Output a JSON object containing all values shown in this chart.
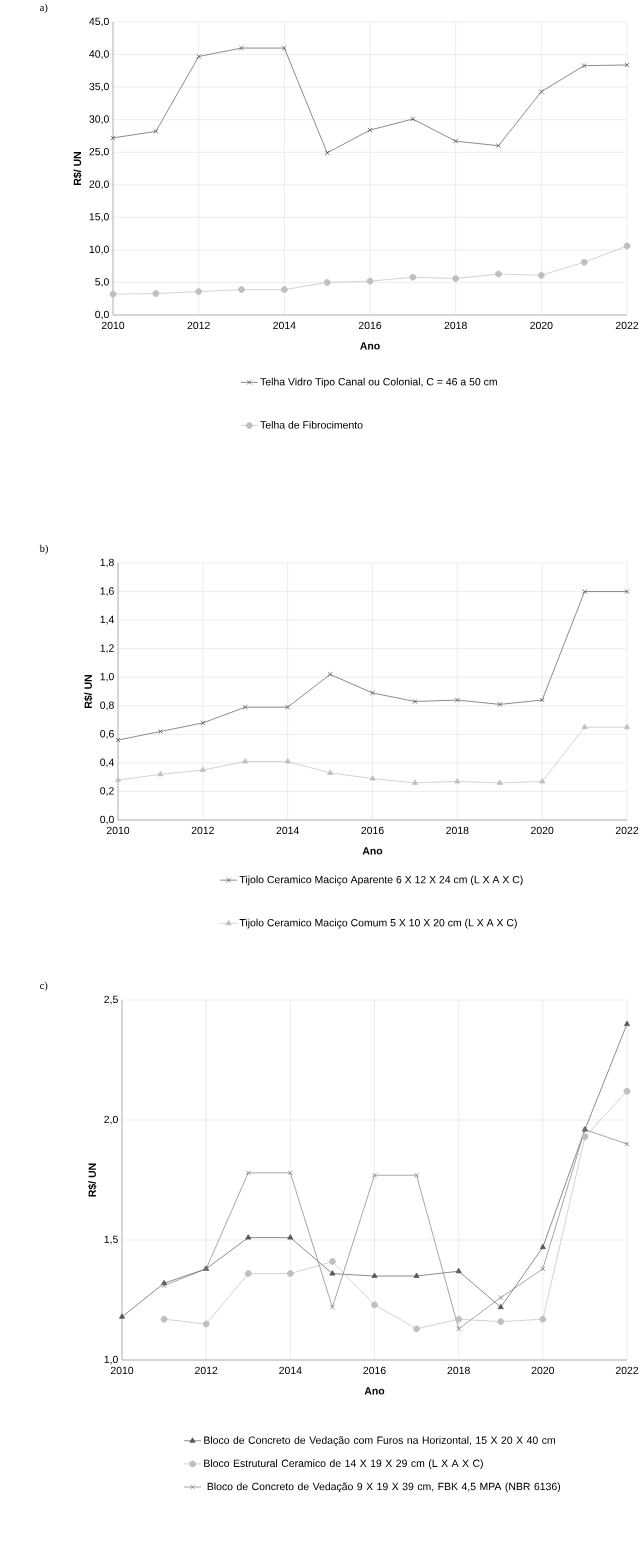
{
  "chart_data": [
    {
      "type": "line",
      "annotations": [
        "a)"
      ],
      "xlabel": "Ano",
      "ylabel": "R$/ UN",
      "x": [
        2010,
        2011,
        2012,
        2013,
        2014,
        2015,
        2016,
        2017,
        2018,
        2019,
        2020,
        2021,
        2022
      ],
      "xlim": [
        2010,
        2022
      ],
      "xticks": [
        2010,
        2012,
        2014,
        2016,
        2018,
        2020,
        2022
      ],
      "ylim": [
        0,
        45
      ],
      "yticks": [
        {
          "value": 0,
          "label": "0,0"
        },
        {
          "value": 5,
          "label": "5,0"
        },
        {
          "value": 10,
          "label": "10,0"
        },
        {
          "value": 15,
          "label": "15,0"
        },
        {
          "value": 20,
          "label": "20,0"
        },
        {
          "value": 25,
          "label": "25,0"
        },
        {
          "value": 30,
          "label": "30,0"
        },
        {
          "value": 35,
          "label": "35,0"
        },
        {
          "value": 40,
          "label": "40,0"
        },
        {
          "value": 45,
          "label": "45,0"
        }
      ],
      "grid": true,
      "legend": "bottom",
      "series": [
        {
          "name": "Telha Vidro Tipo Canal ou Colonial, C = 46 a 50 cm",
          "color": "#595959",
          "marker": "cross",
          "values": [
            27.2,
            28.2,
            39.7,
            41.0,
            41.0,
            24.9,
            28.4,
            30.1,
            26.7,
            26.0,
            34.3,
            38.3,
            38.4
          ]
        },
        {
          "name": "Telha de Fibrocimento",
          "color": "#bfbfbf",
          "marker": "circle",
          "values": [
            3.2,
            3.3,
            3.6,
            3.9,
            3.9,
            5.0,
            5.2,
            5.8,
            5.6,
            6.3,
            6.1,
            8.1,
            10.6
          ]
        }
      ]
    },
    {
      "type": "line",
      "annotations": [
        "b)"
      ],
      "xlabel": "Ano",
      "ylabel": "R$/ UN",
      "x": [
        2010,
        2011,
        2012,
        2013,
        2014,
        2015,
        2016,
        2017,
        2018,
        2019,
        2020,
        2021,
        2022
      ],
      "xlim": [
        2010,
        2022
      ],
      "xticks": [
        2010,
        2012,
        2014,
        2016,
        2018,
        2020,
        2022
      ],
      "ylim": [
        0,
        1.8
      ],
      "yticks": [
        {
          "value": 0,
          "label": "0,0"
        },
        {
          "value": 0.2,
          "label": "0,2"
        },
        {
          "value": 0.4,
          "label": "0,4"
        },
        {
          "value": 0.6,
          "label": "0,6"
        },
        {
          "value": 0.8,
          "label": "0,8"
        },
        {
          "value": 1.0,
          "label": "1,0"
        },
        {
          "value": 1.2,
          "label": "1,2"
        },
        {
          "value": 1.4,
          "label": "1,4"
        },
        {
          "value": 1.6,
          "label": "1,6"
        },
        {
          "value": 1.8,
          "label": "1,8"
        }
      ],
      "grid": true,
      "legend": "bottom",
      "series": [
        {
          "name": "Tijolo Ceramico Maciço Aparente 6 X 12 X 24 cm (L X A X C)",
          "color": "#595959",
          "marker": "cross",
          "values": [
            0.56,
            0.62,
            0.68,
            0.79,
            0.79,
            1.02,
            0.89,
            0.83,
            0.84,
            0.81,
            0.84,
            1.6,
            1.6
          ]
        },
        {
          "name": "Tijolo Ceramico Maciço  Comum 5 X 10 X 20 cm (L X A X C)",
          "color": "#bfbfbf",
          "marker": "triangle",
          "values": [
            0.28,
            0.32,
            0.35,
            0.41,
            0.41,
            0.33,
            0.29,
            0.26,
            0.27,
            0.26,
            0.27,
            0.65,
            0.65
          ]
        }
      ]
    },
    {
      "type": "line",
      "annotations": [
        "c)"
      ],
      "xlabel": "Ano",
      "ylabel": "R$/ UN",
      "x": [
        2010,
        2011,
        2012,
        2013,
        2014,
        2015,
        2016,
        2017,
        2018,
        2019,
        2020,
        2021,
        2022
      ],
      "xlim": [
        2010,
        2022
      ],
      "xticks": [
        2010,
        2012,
        2014,
        2016,
        2018,
        2020,
        2022
      ],
      "ylim": [
        1.0,
        2.5
      ],
      "yticks": [
        {
          "value": 1.0,
          "label": "1,0"
        },
        {
          "value": 1.5,
          "label": "1,5"
        },
        {
          "value": 2.0,
          "label": "2,0"
        },
        {
          "value": 2.5,
          "label": "2,5"
        }
      ],
      "grid": true,
      "legend": "bottom",
      "series": [
        {
          "name": "Bloco de Concreto de Vedação com Furos na Horizontal, 15 X 20 X 40 cm",
          "color": "#595959",
          "marker": "triangle",
          "values": [
            1.18,
            1.32,
            1.38,
            1.51,
            1.51,
            1.36,
            1.35,
            1.35,
            1.37,
            1.22,
            1.47,
            1.96,
            2.4
          ]
        },
        {
          "name": "Bloco Estrutural Ceramico  de 14 X 19 X 29 cm (L X A X C)",
          "color": "#bfbfbf",
          "marker": "circle",
          "values": [
            null,
            1.17,
            1.15,
            1.36,
            1.36,
            1.41,
            1.23,
            1.13,
            1.17,
            1.16,
            1.17,
            1.93,
            2.12
          ]
        },
        {
          "name": " Bloco de Concreto de Vedação  9 X 19 X 39 cm, FBK 4,5 MPA (NBR 6136)",
          "color": "#808080",
          "marker": "cross",
          "values": [
            null,
            1.31,
            1.38,
            1.78,
            1.78,
            1.22,
            1.77,
            1.77,
            1.13,
            1.26,
            1.38,
            1.96,
            1.9
          ]
        }
      ]
    }
  ]
}
